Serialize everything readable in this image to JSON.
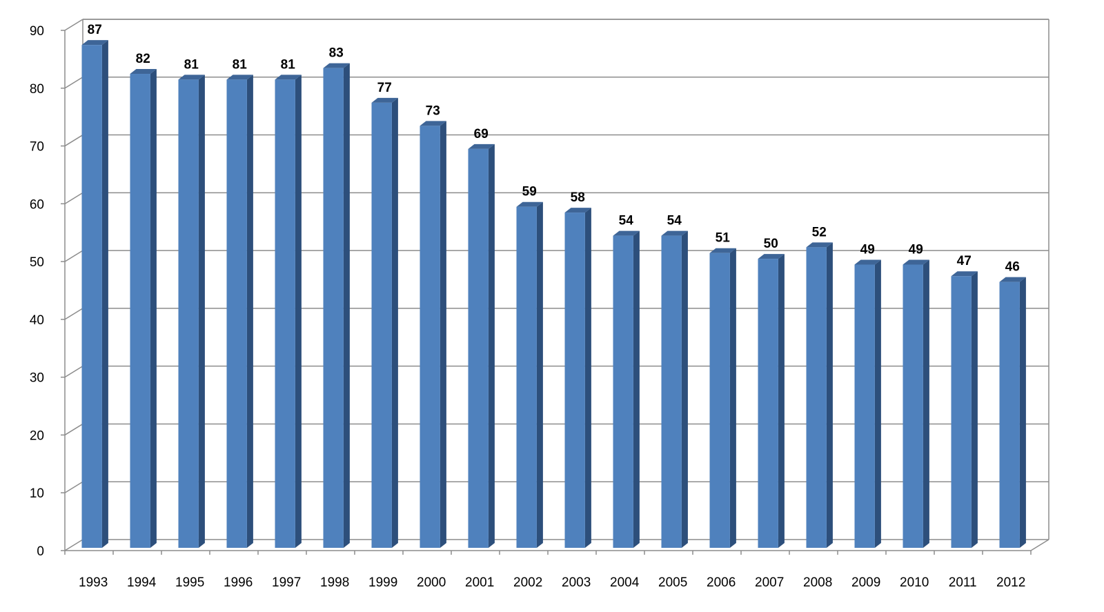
{
  "chart_data": {
    "type": "bar",
    "title": "",
    "xlabel": "",
    "ylabel": "",
    "categories": [
      "1993",
      "1994",
      "1995",
      "1996",
      "1997",
      "1998",
      "1999",
      "2000",
      "2001",
      "2002",
      "2003",
      "2004",
      "2005",
      "2006",
      "2007",
      "2008",
      "2009",
      "2010",
      "2011",
      "2012"
    ],
    "values": [
      87,
      82,
      81,
      81,
      81,
      83,
      77,
      73,
      69,
      59,
      58,
      54,
      54,
      51,
      50,
      52,
      49,
      49,
      47,
      46
    ],
    "ylim": [
      0,
      90
    ],
    "yticks": [
      0,
      10,
      20,
      30,
      40,
      50,
      60,
      70,
      80,
      90
    ],
    "grid": true,
    "legend": "none",
    "style": "3d-column",
    "colors": {
      "bar_front": "#4f81bd",
      "bar_side": "#2d4f7b",
      "bar_top": "#3e6597",
      "grid": "#8c8c8c",
      "axis": "#8c8c8c"
    }
  }
}
